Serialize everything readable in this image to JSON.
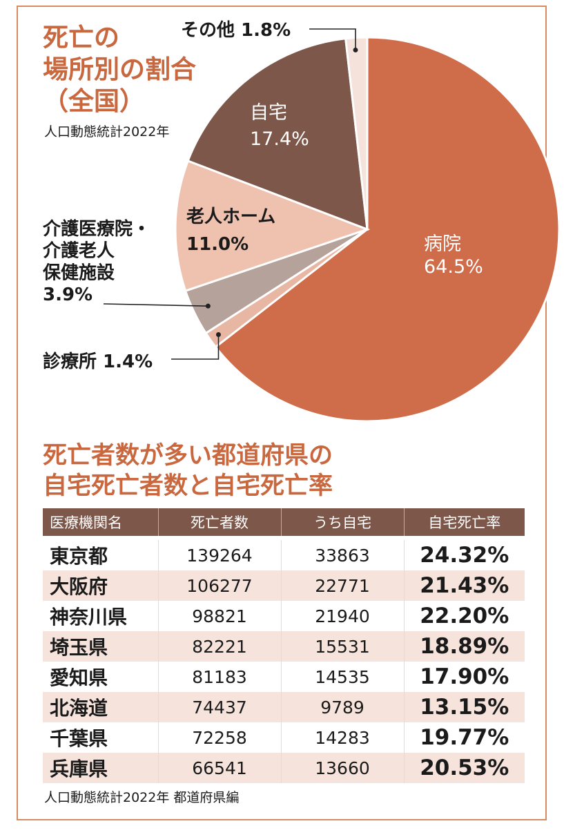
{
  "pie": {
    "title_lines": [
      "死亡の",
      "場所別の割合",
      "（全国）"
    ],
    "source": "人口動態統計2022年"
  },
  "chart_data": [
    {
      "type": "pie",
      "title": "死亡の場所別の割合（全国）",
      "subtitle": "人口動態統計2022年",
      "slices": [
        {
          "label": "病院",
          "value": 64.5,
          "display": "64.5%",
          "color": "#cf6c4a"
        },
        {
          "label": "診療所",
          "value": 1.4,
          "display": "1.4%",
          "color": "#e8b7a3"
        },
        {
          "label": "介護医療院・介護老人保健施設",
          "value": 3.9,
          "display": "3.9%",
          "color": "#b5a29b"
        },
        {
          "label": "老人ホーム",
          "value": 11.0,
          "display": "11.0%",
          "color": "#efc2b0"
        },
        {
          "label": "自宅",
          "value": 17.4,
          "display": "17.4%",
          "color": "#7d574a"
        },
        {
          "label": "その他",
          "value": 1.8,
          "display": "1.8%",
          "color": "#f4e2db"
        }
      ]
    },
    {
      "type": "table",
      "title": "死亡者数が多い都道府県の自宅死亡者数と自宅死亡率",
      "columns": [
        "医療機関名",
        "死亡者数",
        "うち自宅",
        "自宅死亡率"
      ],
      "rows": [
        [
          "東京都",
          "139264",
          "33863",
          "24.32%"
        ],
        [
          "大阪府",
          "106277",
          "22771",
          "21.43%"
        ],
        [
          "神奈川県",
          "98821",
          "21940",
          "22.20%"
        ],
        [
          "埼玉県",
          "82221",
          "15531",
          "18.89%"
        ],
        [
          "愛知県",
          "81183",
          "14535",
          "17.90%"
        ],
        [
          "北海道",
          "74437",
          "9789",
          "13.15%"
        ],
        [
          "千葉県",
          "72258",
          "14283",
          "19.77%"
        ],
        [
          "兵庫県",
          "66541",
          "13660",
          "20.53%"
        ]
      ],
      "source": "人口動態統計2022年 都道府県編"
    }
  ],
  "table": {
    "title_lines": [
      "死亡者数が多い都道府県の",
      "自宅死亡者数と自宅死亡率"
    ]
  },
  "colors": {
    "accent": "#c9683f",
    "header_bg": "#7d574a",
    "row_alt": "#f6e4dc",
    "border": "#d88a62"
  }
}
